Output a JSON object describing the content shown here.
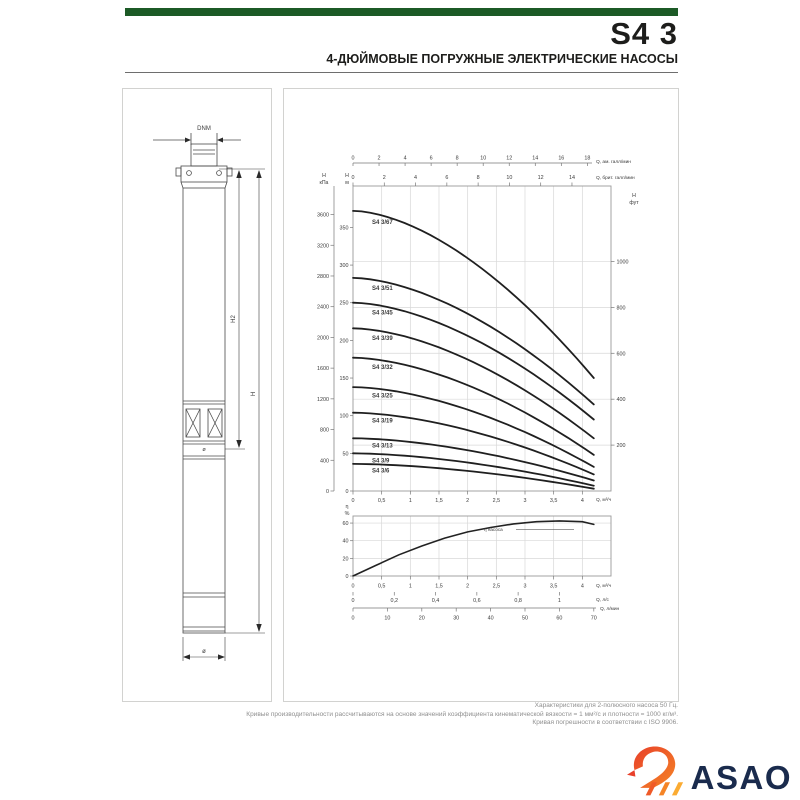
{
  "header": {
    "title": "S4 3",
    "subtitle": "4-ДЮЙМОВЫЕ ПОГРУЖНЫЕ ЭЛЕКТРИЧЕСКИЕ НАСОСЫ",
    "bar_color": "#1c5a26"
  },
  "drawing": {
    "dim_dnm": "DNM",
    "dim_h2": "H2",
    "dim_h": "H",
    "dim_diameter": "ø",
    "body_diameter": "ø"
  },
  "chart_data": [
    {
      "type": "line",
      "name": "head-flow-curves",
      "x_unit": "м³/ч",
      "x_max": 4.5,
      "q_end": 4.2,
      "curve_exponent": 1.7,
      "bottom_axis": {
        "label": "Q, м³/ч",
        "ticks": [
          0,
          0.5,
          1,
          1.5,
          2,
          2.5,
          3,
          3.5,
          4
        ]
      },
      "top_axes": [
        {
          "label": "Q, ам. галл/мин",
          "ticks": [
            0,
            2,
            4,
            6,
            8,
            10,
            12,
            14,
            16,
            18
          ],
          "m3h_per_unit": 0.2271
        },
        {
          "label": "Q, брит. галл/мин",
          "ticks": [
            0,
            2,
            4,
            6,
            8,
            10,
            12,
            14
          ],
          "m3h_per_unit": 0.2728
        }
      ],
      "left_axis_outer": {
        "label": "H",
        "unit": "кПа",
        "ticks": [
          0,
          400,
          800,
          1200,
          1600,
          2000,
          2400,
          2800,
          3200,
          3600
        ],
        "m_per_unit": 0.10197
      },
      "left_axis_inner": {
        "label": "H",
        "unit": "м",
        "ticks": [
          0,
          50,
          100,
          150,
          200,
          250,
          300,
          350
        ]
      },
      "right_axis": {
        "label": "H",
        "unit": "фут",
        "ticks": [
          200,
          400,
          600,
          800,
          1000
        ],
        "m_per_unit": 0.3048
      },
      "ylim_m": [
        0,
        405
      ],
      "series": [
        {
          "name": "S4 3/67",
          "shutoff_head_m": 372,
          "head_at_qend_m": 150
        },
        {
          "name": "S4 3/51",
          "shutoff_head_m": 283,
          "head_at_qend_m": 115
        },
        {
          "name": "S4 3/45",
          "shutoff_head_m": 250,
          "head_at_qend_m": 95
        },
        {
          "name": "S4 3/39",
          "shutoff_head_m": 216,
          "head_at_qend_m": 70
        },
        {
          "name": "S4 3/32",
          "shutoff_head_m": 177,
          "head_at_qend_m": 48
        },
        {
          "name": "S4 3/25",
          "shutoff_head_m": 138,
          "head_at_qend_m": 32
        },
        {
          "name": "S4 3/19",
          "shutoff_head_m": 104,
          "head_at_qend_m": 22
        },
        {
          "name": "S4 3/13",
          "shutoff_head_m": 70,
          "head_at_qend_m": 14
        },
        {
          "name": "S4 3/9",
          "shutoff_head_m": 50,
          "head_at_qend_m": 7
        },
        {
          "name": "S4 3/6",
          "shutoff_head_m": 36,
          "head_at_qend_m": 3
        }
      ]
    },
    {
      "type": "line",
      "name": "efficiency-curve",
      "curve_label": "η насоса",
      "y_axis": {
        "label": "η",
        "unit": "%",
        "ticks": [
          0,
          20,
          40,
          60
        ]
      },
      "ylim": [
        0,
        68
      ],
      "points": [
        [
          0,
          0
        ],
        [
          0.4,
          12
        ],
        [
          0.8,
          24
        ],
        [
          1.2,
          34
        ],
        [
          1.6,
          43
        ],
        [
          2,
          50
        ],
        [
          2.4,
          55
        ],
        [
          2.8,
          59
        ],
        [
          3.2,
          61.5
        ],
        [
          3.6,
          62.5
        ],
        [
          4,
          61.5
        ],
        [
          4.2,
          58.5
        ]
      ],
      "bottom_axes": [
        {
          "label": "Q, м³/ч",
          "ticks": [
            0,
            0.5,
            1,
            1.5,
            2,
            2.5,
            3,
            3.5,
            4
          ],
          "m3h_per_unit": 1
        },
        {
          "label": "Q, л/с",
          "ticks": [
            0,
            0.2,
            0.4,
            0.6,
            0.8,
            1
          ],
          "m3h_per_unit": 3.6
        },
        {
          "label": "Q, л/мин",
          "ticks": [
            0,
            10,
            20,
            30,
            40,
            50,
            60,
            70
          ],
          "m3h_per_unit": 0.06
        }
      ]
    }
  ],
  "footer": {
    "lines": [
      "Характеристики для 2-полюсного насоса 50 Гц.",
      "Кривые производительности рассчитываются на основе значений коэффициента кинематической вязкости = 1 мм²/с и плотности = 1000 кг/м³.",
      "Кривая погрешности в соответствии с ISO 9906."
    ]
  },
  "logo": {
    "text": "ASAO",
    "text_color": "#1a2b4d",
    "mark_colors": [
      "#e8402a",
      "#f2682c",
      "#f58426",
      "#fbab32"
    ]
  }
}
